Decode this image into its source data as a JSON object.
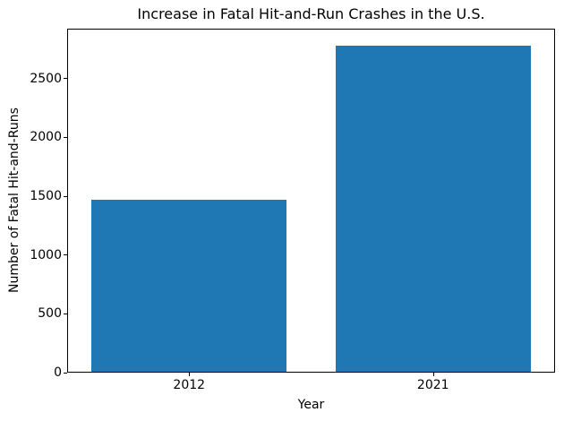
{
  "chart_data": {
    "type": "bar",
    "title": "Increase in Fatal Hit-and-Run Crashes in the U.S.",
    "categories": [
      "2012",
      "2021"
    ],
    "values": [
      1470,
      2780
    ],
    "xlabel": "Year",
    "ylabel": "Number of Fatal Hit-and-Runs",
    "ylim": [
      0,
      2925
    ],
    "yticks": [
      0,
      500,
      1000,
      1500,
      2000,
      2500
    ],
    "bar_color": "#1f77b4",
    "background_color": "#ffffff",
    "spine_color": "#000000",
    "grid": false,
    "legend": false
  }
}
